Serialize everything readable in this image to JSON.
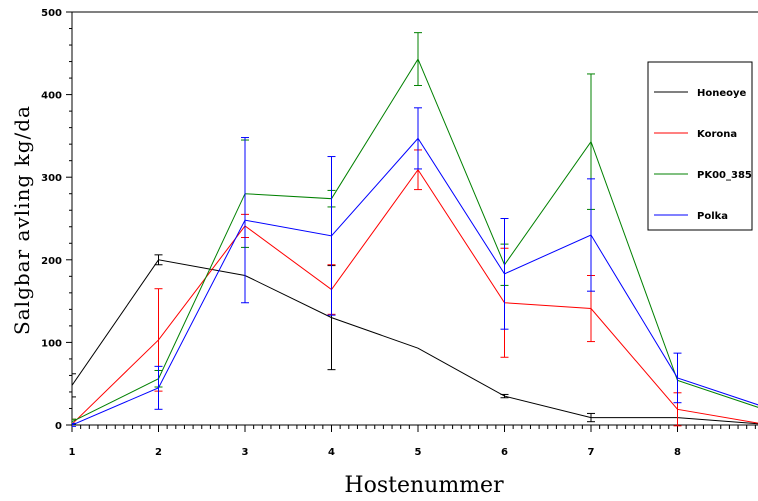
{
  "chart_data": {
    "type": "line",
    "xlabel": "Hostenummer",
    "ylabel": "Salgbar avling kg/da",
    "x": [
      1,
      2,
      3,
      4,
      5,
      6,
      7,
      8,
      9
    ],
    "xlim": [
      1,
      9
    ],
    "ylim": [
      0,
      500
    ],
    "xticks": [
      "1",
      "2",
      "3",
      "4",
      "5",
      "6",
      "7",
      "8"
    ],
    "yticks": [
      "0",
      "100",
      "200",
      "300",
      "400",
      "500"
    ],
    "grid": false,
    "legend_position": "top-right",
    "series": [
      {
        "name": "Honeoye",
        "color": "#000000",
        "values": [
          48,
          200,
          181,
          130,
          93,
          35,
          9,
          9,
          1
        ],
        "err": [
          14,
          6,
          0,
          63,
          0,
          2,
          5,
          0,
          0
        ]
      },
      {
        "name": "Korona",
        "color": "#ff0000",
        "values": [
          1,
          103,
          241,
          164,
          309,
          148,
          141,
          19,
          1
        ],
        "err": [
          6,
          62,
          14,
          30,
          24,
          66,
          40,
          20,
          0
        ]
      },
      {
        "name": "PK00_385",
        "color": "#008000",
        "values": [
          4,
          56,
          280,
          274,
          443,
          194,
          343,
          54,
          19
        ],
        "err": [
          3,
          10,
          65,
          10,
          32,
          25,
          82,
          0,
          0
        ]
      },
      {
        "name": "Polka",
        "color": "#0000ff",
        "values": [
          0,
          45,
          248,
          229,
          347,
          183,
          230,
          57,
          22
        ],
        "err": [
          2,
          26,
          100,
          96,
          37,
          67,
          68,
          30,
          0
        ]
      }
    ]
  }
}
